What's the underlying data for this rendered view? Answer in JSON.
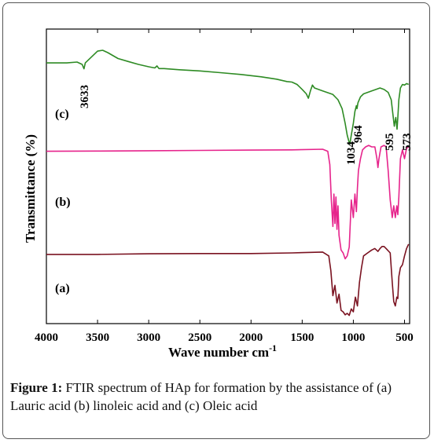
{
  "chart_data": {
    "type": "line",
    "xlabel": "Wave number cm",
    "xlabel_superscript": "-1",
    "ylabel": "Transmittance (%)",
    "xlim": [
      4000,
      450
    ],
    "x_reversed": true,
    "x_ticks": [
      4000,
      3500,
      3000,
      2500,
      2000,
      1500,
      1000,
      500
    ],
    "y_ticks_shown": false,
    "grid": false,
    "series": [
      {
        "name": "(a)",
        "color": "#7a1220",
        "points": [
          [
            4000,
            0.235
          ],
          [
            3500,
            0.235
          ],
          [
            3000,
            0.237
          ],
          [
            2500,
            0.238
          ],
          [
            2000,
            0.238
          ],
          [
            1600,
            0.24
          ],
          [
            1300,
            0.243
          ],
          [
            1240,
            0.23
          ],
          [
            1220,
            0.18
          ],
          [
            1200,
            0.095
          ],
          [
            1180,
            0.13
          ],
          [
            1160,
            0.07
          ],
          [
            1140,
            0.1
          ],
          [
            1120,
            0.045
          ],
          [
            1100,
            0.04
          ],
          [
            1080,
            0.03
          ],
          [
            1060,
            0.035
          ],
          [
            1040,
            0.028
          ],
          [
            1020,
            0.05
          ],
          [
            1000,
            0.04
          ],
          [
            980,
            0.09
          ],
          [
            960,
            0.06
          ],
          [
            940,
            0.14
          ],
          [
            920,
            0.19
          ],
          [
            900,
            0.23
          ],
          [
            860,
            0.24
          ],
          [
            820,
            0.25
          ],
          [
            790,
            0.255
          ],
          [
            760,
            0.245
          ],
          [
            740,
            0.255
          ],
          [
            720,
            0.262
          ],
          [
            700,
            0.262
          ],
          [
            680,
            0.255
          ],
          [
            640,
            0.24
          ],
          [
            620,
            0.14
          ],
          [
            605,
            0.075
          ],
          [
            590,
            0.06
          ],
          [
            575,
            0.09
          ],
          [
            565,
            0.085
          ],
          [
            555,
            0.16
          ],
          [
            540,
            0.19
          ],
          [
            520,
            0.2
          ],
          [
            500,
            0.23
          ],
          [
            480,
            0.255
          ],
          [
            460,
            0.27
          ]
        ]
      },
      {
        "name": "(b)",
        "color": "#e6248c",
        "points": [
          [
            4000,
            0.585
          ],
          [
            3500,
            0.586
          ],
          [
            3000,
            0.587
          ],
          [
            2500,
            0.588
          ],
          [
            2000,
            0.589
          ],
          [
            1600,
            0.59
          ],
          [
            1300,
            0.592
          ],
          [
            1250,
            0.585
          ],
          [
            1230,
            0.54
          ],
          [
            1215,
            0.42
          ],
          [
            1200,
            0.33
          ],
          [
            1190,
            0.44
          ],
          [
            1180,
            0.34
          ],
          [
            1170,
            0.43
          ],
          [
            1160,
            0.32
          ],
          [
            1150,
            0.4
          ],
          [
            1140,
            0.3
          ],
          [
            1120,
            0.25
          ],
          [
            1100,
            0.24
          ],
          [
            1080,
            0.22
          ],
          [
            1060,
            0.23
          ],
          [
            1040,
            0.26
          ],
          [
            1020,
            0.42
          ],
          [
            1000,
            0.36
          ],
          [
            985,
            0.44
          ],
          [
            970,
            0.38
          ],
          [
            960,
            0.46
          ],
          [
            950,
            0.52
          ],
          [
            930,
            0.56
          ],
          [
            910,
            0.59
          ],
          [
            880,
            0.6
          ],
          [
            850,
            0.605
          ],
          [
            820,
            0.6
          ],
          [
            790,
            0.6
          ],
          [
            770,
            0.56
          ],
          [
            760,
            0.53
          ],
          [
            750,
            0.56
          ],
          [
            730,
            0.6
          ],
          [
            700,
            0.605
          ],
          [
            680,
            0.6
          ],
          [
            660,
            0.52
          ],
          [
            640,
            0.42
          ],
          [
            620,
            0.36
          ],
          [
            605,
            0.4
          ],
          [
            590,
            0.36
          ],
          [
            575,
            0.4
          ],
          [
            565,
            0.37
          ],
          [
            555,
            0.43
          ],
          [
            540,
            0.56
          ],
          [
            520,
            0.59
          ],
          [
            500,
            0.56
          ],
          [
            480,
            0.595
          ],
          [
            460,
            0.6
          ]
        ]
      },
      {
        "name": "(c)",
        "color": "#2e8b24",
        "points": [
          [
            4000,
            0.885
          ],
          [
            3800,
            0.885
          ],
          [
            3700,
            0.888
          ],
          [
            3650,
            0.88
          ],
          [
            3633,
            0.865
          ],
          [
            3620,
            0.885
          ],
          [
            3560,
            0.905
          ],
          [
            3500,
            0.925
          ],
          [
            3450,
            0.928
          ],
          [
            3400,
            0.92
          ],
          [
            3300,
            0.9
          ],
          [
            3200,
            0.89
          ],
          [
            3100,
            0.88
          ],
          [
            3000,
            0.872
          ],
          [
            2940,
            0.868
          ],
          [
            2920,
            0.875
          ],
          [
            2900,
            0.866
          ],
          [
            2850,
            0.866
          ],
          [
            2700,
            0.862
          ],
          [
            2500,
            0.858
          ],
          [
            2300,
            0.852
          ],
          [
            2100,
            0.846
          ],
          [
            1900,
            0.838
          ],
          [
            1750,
            0.83
          ],
          [
            1650,
            0.822
          ],
          [
            1600,
            0.82
          ],
          [
            1550,
            0.812
          ],
          [
            1500,
            0.795
          ],
          [
            1460,
            0.78
          ],
          [
            1440,
            0.765
          ],
          [
            1420,
            0.79
          ],
          [
            1400,
            0.81
          ],
          [
            1380,
            0.8
          ],
          [
            1300,
            0.79
          ],
          [
            1200,
            0.778
          ],
          [
            1150,
            0.76
          ],
          [
            1110,
            0.73
          ],
          [
            1080,
            0.68
          ],
          [
            1060,
            0.64
          ],
          [
            1045,
            0.62
          ],
          [
            1034,
            0.61
          ],
          [
            1020,
            0.64
          ],
          [
            1000,
            0.68
          ],
          [
            985,
            0.72
          ],
          [
            970,
            0.74
          ],
          [
            964,
            0.73
          ],
          [
            955,
            0.75
          ],
          [
            930,
            0.77
          ],
          [
            900,
            0.78
          ],
          [
            860,
            0.785
          ],
          [
            820,
            0.79
          ],
          [
            780,
            0.795
          ],
          [
            740,
            0.8
          ],
          [
            700,
            0.795
          ],
          [
            660,
            0.785
          ],
          [
            630,
            0.76
          ],
          [
            610,
            0.7
          ],
          [
            600,
            0.67
          ],
          [
            595,
            0.68
          ],
          [
            585,
            0.7
          ],
          [
            573,
            0.66
          ],
          [
            565,
            0.7
          ],
          [
            555,
            0.76
          ],
          [
            540,
            0.8
          ],
          [
            520,
            0.812
          ],
          [
            500,
            0.81
          ],
          [
            480,
            0.815
          ],
          [
            460,
            0.812
          ]
        ]
      }
    ],
    "annotations": [
      {
        "text": "3633",
        "series": "(c)"
      },
      {
        "text": "1034",
        "series": "(c)"
      },
      {
        "text": "964",
        "series": "(c)"
      },
      {
        "text": "595",
        "series": "(c)"
      },
      {
        "text": "573",
        "series": "(c)"
      }
    ]
  },
  "caption": {
    "label": "Figure 1:",
    "text": " FTIR spectrum of HAp for formation by the assistance of (a) Lauric acid (b) linoleic acid and (c) Oleic acid"
  }
}
